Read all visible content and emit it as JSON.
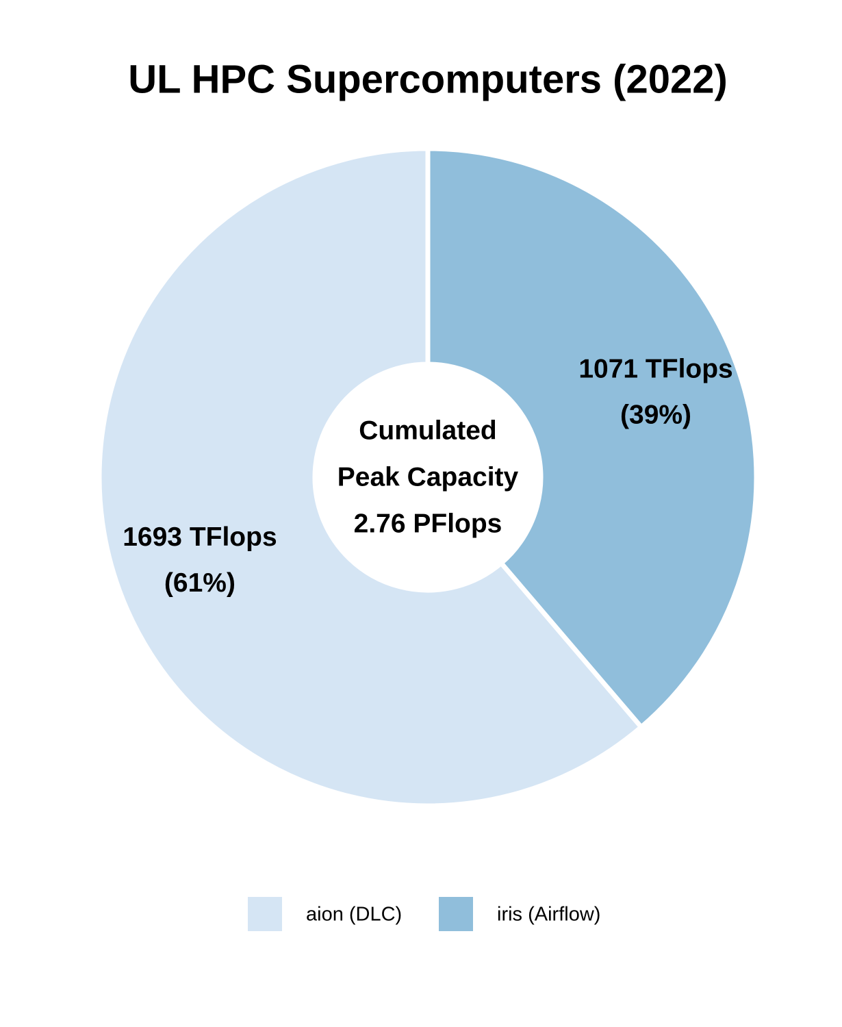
{
  "chart_data": {
    "type": "donut",
    "title": "UL HPC Supercomputers (2022)",
    "categories": [
      "aion (DLC)",
      "iris (Airflow)"
    ],
    "values": [
      1693,
      1071
    ],
    "value_labels": [
      "1693 TFlops",
      "1071 TFlops"
    ],
    "percent_labels": [
      "(61%)",
      "(39%)"
    ],
    "colors": [
      "#d5e5f4",
      "#90bedb"
    ],
    "center_label": [
      "Cumulated",
      "Peak Capacity",
      "2.76 PFlops"
    ],
    "legend": "bottom"
  }
}
